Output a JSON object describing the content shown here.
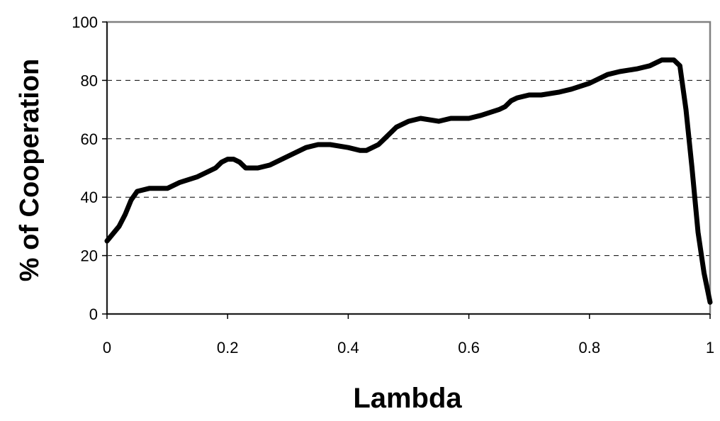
{
  "chart_data": {
    "type": "line",
    "title": "",
    "xlabel": "Lambda",
    "ylabel": "% of Cooperation",
    "xlim": [
      0,
      1
    ],
    "ylim": [
      0,
      100
    ],
    "grid": "horizontal dashed at y-ticks",
    "legend": "none",
    "x_ticks": [
      0,
      0.2,
      0.4,
      0.6,
      0.8,
      1
    ],
    "x_tick_labels": [
      "0",
      "0.2",
      "0.4",
      "0.6",
      "0.8",
      "1"
    ],
    "y_ticks": [
      0,
      20,
      40,
      60,
      80,
      100
    ],
    "y_tick_labels": [
      "0",
      "20",
      "40",
      "60",
      "80",
      "100"
    ],
    "series": [
      {
        "color": "#000000",
        "x": [
          0.0,
          0.02,
          0.03,
          0.04,
          0.05,
          0.07,
          0.1,
          0.12,
          0.15,
          0.17,
          0.18,
          0.19,
          0.2,
          0.21,
          0.22,
          0.23,
          0.25,
          0.27,
          0.3,
          0.33,
          0.35,
          0.37,
          0.4,
          0.42,
          0.43,
          0.45,
          0.46,
          0.48,
          0.5,
          0.52,
          0.55,
          0.57,
          0.6,
          0.62,
          0.65,
          0.66,
          0.67,
          0.68,
          0.7,
          0.72,
          0.75,
          0.77,
          0.8,
          0.83,
          0.85,
          0.88,
          0.9,
          0.91,
          0.92,
          0.93,
          0.94,
          0.95,
          0.96,
          0.97,
          0.98,
          0.99,
          1.0
        ],
        "values": [
          25,
          30,
          34,
          39,
          42,
          43,
          43,
          45,
          47,
          49,
          50,
          52,
          53,
          53,
          52,
          50,
          50,
          51,
          54,
          57,
          58,
          58,
          57,
          56,
          56,
          58,
          60,
          64,
          66,
          67,
          66,
          67,
          67,
          68,
          70,
          71,
          73,
          74,
          75,
          75,
          76,
          77,
          79,
          82,
          83,
          84,
          85,
          86,
          87,
          87,
          87,
          85,
          70,
          50,
          28,
          14,
          4
        ]
      }
    ]
  }
}
